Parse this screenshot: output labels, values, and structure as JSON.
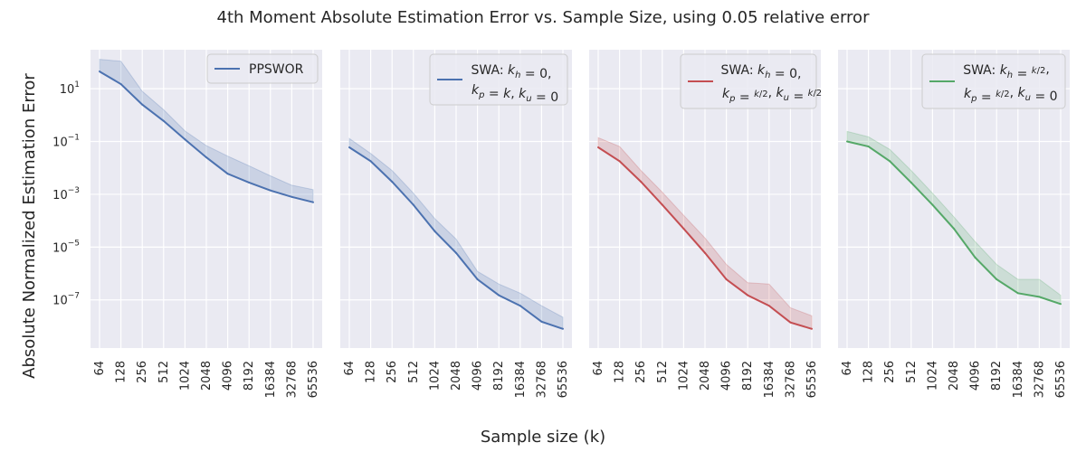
{
  "title": "4th Moment Absolute Estimation Error vs. Sample Size, using 0.05 relative error",
  "xlabel": "Sample size (k)",
  "ylabel": "Absolute Normalized Estimation Error",
  "colors": {
    "panel_bg": "#eaeaf2",
    "grid": "#ffffff",
    "blue": "#4c72b0",
    "red": "#c44e52",
    "green": "#55a868"
  },
  "chart_data": {
    "type": "line",
    "x": [
      "64",
      "128",
      "256",
      "512",
      "1024",
      "2048",
      "4096",
      "8192",
      "16384",
      "32768",
      "65536"
    ],
    "yscale": "log",
    "ylim": [
      1.5e-09,
      300
    ],
    "yticks": [
      {
        "value": 10,
        "base": "10",
        "exp": "1"
      },
      {
        "value": 0.1,
        "base": "10",
        "exp": "−1"
      },
      {
        "value": 0.001,
        "base": "10",
        "exp": "−3"
      },
      {
        "value": 1e-05,
        "base": "10",
        "exp": "−5"
      },
      {
        "value": 1e-07,
        "base": "10",
        "exp": "−7"
      }
    ],
    "grid": true,
    "legend_position": "top-right",
    "panels": [
      {
        "legend": [
          "PPSWOR"
        ],
        "color": "blue",
        "values": [
          45,
          15,
          2.5,
          0.6,
          0.12,
          0.025,
          0.006,
          0.0028,
          0.0014,
          0.0008,
          0.0005
        ],
        "upper": [
          130,
          110,
          8,
          1.6,
          0.25,
          0.07,
          0.028,
          0.012,
          0.005,
          0.0022,
          0.0015
        ],
        "lower": [
          45,
          15,
          2.5,
          0.6,
          0.12,
          0.025,
          0.006,
          0.0028,
          0.0014,
          0.0008,
          0.0005
        ]
      },
      {
        "legend": [
          "SWA: kh = 0,",
          "kp = k, ku = 0"
        ],
        "color": "blue",
        "values": [
          0.06,
          0.018,
          0.003,
          0.0004,
          4e-05,
          6e-06,
          6e-07,
          1.5e-07,
          6e-08,
          1.5e-08,
          8e-09
        ],
        "upper": [
          0.13,
          0.035,
          0.008,
          0.0011,
          0.00012,
          2e-05,
          1.2e-06,
          4e-07,
          1.8e-07,
          6e-08,
          2.2e-08
        ],
        "lower": [
          0.06,
          0.018,
          0.003,
          0.0004,
          4e-05,
          6e-06,
          6e-07,
          1.5e-07,
          6e-08,
          1.5e-08,
          8e-09
        ]
      },
      {
        "legend": [
          "SWA: kh = 0,",
          "kp = k/2, ku = k/2"
        ],
        "color": "red",
        "values": [
          0.06,
          0.018,
          0.003,
          0.0004,
          5e-05,
          6e-06,
          6e-07,
          1.5e-07,
          6e-08,
          1.4e-08,
          8e-09
        ],
        "upper": [
          0.14,
          0.065,
          0.008,
          0.0012,
          0.00016,
          2.2e-05,
          2.2e-06,
          4.5e-07,
          4e-07,
          5e-08,
          2.5e-08
        ],
        "lower": [
          0.06,
          0.018,
          0.003,
          0.0004,
          5e-05,
          6e-06,
          6e-07,
          1.5e-07,
          6e-08,
          1.4e-08,
          8e-09
        ]
      },
      {
        "legend": [
          "SWA: kh = k/2,",
          "kp = k/2, ku = 0"
        ],
        "color": "green",
        "values": [
          0.1,
          0.065,
          0.018,
          0.0028,
          0.0004,
          5e-05,
          4e-06,
          6e-07,
          1.8e-07,
          1.3e-07,
          7e-08
        ],
        "upper": [
          0.24,
          0.15,
          0.05,
          0.008,
          0.0011,
          0.00014,
          1.6e-05,
          2.2e-06,
          6e-07,
          6e-07,
          1.5e-07
        ],
        "lower": [
          0.1,
          0.065,
          0.018,
          0.0028,
          0.0004,
          5e-05,
          4e-06,
          6e-07,
          1.8e-07,
          1.3e-07,
          7e-08
        ]
      }
    ]
  }
}
